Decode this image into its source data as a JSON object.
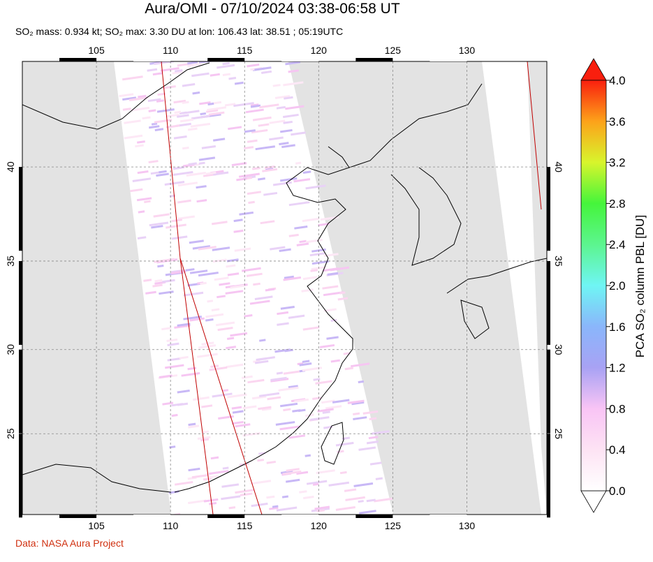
{
  "title": "Aura/OMI - 07/10/2024 03:38-06:58 UT",
  "subtitle": "SO₂ mass: 0.934 kt; SO₂ max: 3.30 DU at lon: 106.43 lat: 38.51 ; 05:19UTC",
  "credit": "Data: NASA Aura Project",
  "map": {
    "lon_range": [
      100,
      135.4
    ],
    "lat_range": [
      20,
      45.2
    ],
    "lon_ticks": [
      105,
      110,
      115,
      120,
      125,
      130
    ],
    "lat_ticks": [
      25,
      30,
      35,
      40
    ]
  },
  "colorbar": {
    "label": "PCA SO₂ column PBL [DU]",
    "range": [
      0,
      4
    ],
    "ticks": [
      {
        "value": 0,
        "label": "0.0"
      },
      {
        "value": 0.4,
        "label": "0.4"
      },
      {
        "value": 0.8,
        "label": "0.8"
      },
      {
        "value": 1.2,
        "label": "1.2"
      },
      {
        "value": 1.6,
        "label": "1.6"
      },
      {
        "value": 2,
        "label": "2.0"
      },
      {
        "value": 2.4,
        "label": "2.4"
      },
      {
        "value": 2.8,
        "label": "2.8"
      },
      {
        "value": 3.2,
        "label": "3.2"
      },
      {
        "value": 3.6,
        "label": "3.6"
      },
      {
        "value": 4,
        "label": "4.0"
      }
    ]
  }
}
